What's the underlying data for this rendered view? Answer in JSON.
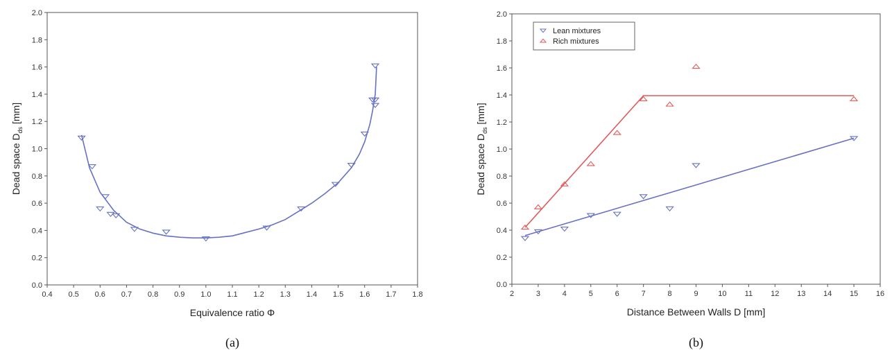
{
  "colors": {
    "lean": "#6670c4",
    "rich": "#e05a5a",
    "axis": "#555555"
  },
  "chart_data": [
    {
      "type": "scatter",
      "caption": "(a)",
      "xlabel": "Equivalence ratio Φ",
      "ylabel_main": "Dead space D",
      "ylabel_sub": "ds",
      "ylabel_unit": " [mm]",
      "xlim": [
        0.4,
        1.8
      ],
      "ylim": [
        0.0,
        2.0
      ],
      "xticks": [
        0.4,
        0.5,
        0.6,
        0.7,
        0.8,
        0.9,
        1.0,
        1.1,
        1.2,
        1.3,
        1.4,
        1.5,
        1.6,
        1.7,
        1.8
      ],
      "xtick_labels": [
        "0.4",
        "0.5",
        "0.6",
        "0.7",
        "0.8",
        "0.9",
        "1.0",
        "1.1",
        "1.2",
        "1.3",
        "1.4",
        "1.5",
        "1.6",
        "1.7",
        "1.8"
      ],
      "yticks": [
        0.0,
        0.2,
        0.4,
        0.6,
        0.8,
        1.0,
        1.2,
        1.4,
        1.6,
        1.8,
        2.0
      ],
      "ytick_labels": [
        "0.0",
        "0.2",
        "0.4",
        "0.6",
        "0.8",
        "1.0",
        "1.2",
        "1.4",
        "1.6",
        "1.8",
        "2.0"
      ],
      "series": [
        {
          "marker": "triangle-down",
          "color": "#6670c4",
          "points": [
            [
              0.53,
              1.08
            ],
            [
              0.57,
              0.87
            ],
            [
              0.6,
              0.56
            ],
            [
              0.62,
              0.65
            ],
            [
              0.64,
              0.52
            ],
            [
              0.66,
              0.51
            ],
            [
              0.73,
              0.41
            ],
            [
              0.85,
              0.39
            ],
            [
              1.0,
              0.34
            ],
            [
              1.23,
              0.42
            ],
            [
              1.36,
              0.56
            ],
            [
              1.49,
              0.74
            ],
            [
              1.55,
              0.88
            ],
            [
              1.6,
              1.11
            ],
            [
              1.63,
              1.36
            ],
            [
              1.64,
              1.36
            ],
            [
              1.64,
              1.32
            ],
            [
              1.64,
              1.61
            ]
          ],
          "fit_curve": [
            [
              0.53,
              1.1
            ],
            [
              0.56,
              0.86
            ],
            [
              0.6,
              0.68
            ],
            [
              0.65,
              0.55
            ],
            [
              0.7,
              0.46
            ],
            [
              0.75,
              0.41
            ],
            [
              0.8,
              0.38
            ],
            [
              0.85,
              0.36
            ],
            [
              0.9,
              0.35
            ],
            [
              0.95,
              0.345
            ],
            [
              1.0,
              0.345
            ],
            [
              1.05,
              0.35
            ],
            [
              1.1,
              0.36
            ],
            [
              1.15,
              0.385
            ],
            [
              1.2,
              0.41
            ],
            [
              1.25,
              0.44
            ],
            [
              1.3,
              0.48
            ],
            [
              1.35,
              0.54
            ],
            [
              1.4,
              0.6
            ],
            [
              1.45,
              0.67
            ],
            [
              1.5,
              0.75
            ],
            [
              1.55,
              0.86
            ],
            [
              1.58,
              0.96
            ],
            [
              1.6,
              1.05
            ],
            [
              1.62,
              1.18
            ],
            [
              1.63,
              1.28
            ],
            [
              1.64,
              1.4
            ],
            [
              1.645,
              1.6
            ]
          ]
        }
      ]
    },
    {
      "type": "scatter",
      "caption": "(b)",
      "xlabel": "Distance Between Walls D [mm]",
      "ylabel_main": "Dead space D",
      "ylabel_sub": "ds",
      "ylabel_unit": " [mm]",
      "xlim": [
        2,
        16
      ],
      "ylim": [
        0.0,
        2.0
      ],
      "xticks": [
        2,
        3,
        4,
        5,
        6,
        7,
        8,
        9,
        10,
        11,
        12,
        13,
        14,
        15,
        16
      ],
      "xtick_labels": [
        "2",
        "3",
        "4",
        "5",
        "6",
        "7",
        "8",
        "9",
        "10",
        "11",
        "12",
        "13",
        "14",
        "15",
        "16"
      ],
      "yticks": [
        0.0,
        0.2,
        0.4,
        0.6,
        0.8,
        1.0,
        1.2,
        1.4,
        1.6,
        1.8,
        2.0
      ],
      "ytick_labels": [
        "0.0",
        "0.2",
        "0.4",
        "0.6",
        "0.8",
        "1.0",
        "1.2",
        "1.4",
        "1.6",
        "1.8",
        "2.0"
      ],
      "legend_position": "top-left",
      "series": [
        {
          "name": "Lean mixtures",
          "marker": "triangle-down",
          "color": "#6670c4",
          "points": [
            [
              2.5,
              0.34
            ],
            [
              3,
              0.39
            ],
            [
              4,
              0.41
            ],
            [
              5,
              0.51
            ],
            [
              6,
              0.52
            ],
            [
              7,
              0.65
            ],
            [
              8,
              0.56
            ],
            [
              9,
              0.88
            ],
            [
              15,
              1.08
            ]
          ],
          "fit_line": [
            [
              2.5,
              0.36
            ],
            [
              15,
              1.08
            ]
          ]
        },
        {
          "name": "Rich mixtures",
          "marker": "triangle-up",
          "color": "#e05a5a",
          "points": [
            [
              2.5,
              0.42
            ],
            [
              3,
              0.57
            ],
            [
              4,
              0.74
            ],
            [
              5,
              0.89
            ],
            [
              6,
              1.12
            ],
            [
              7,
              1.37
            ],
            [
              8,
              1.33
            ],
            [
              9,
              1.61
            ],
            [
              15,
              1.37
            ]
          ],
          "fit_line": [
            [
              2.5,
              0.42
            ],
            [
              7,
              1.395
            ],
            [
              15,
              1.395
            ]
          ]
        }
      ]
    }
  ]
}
